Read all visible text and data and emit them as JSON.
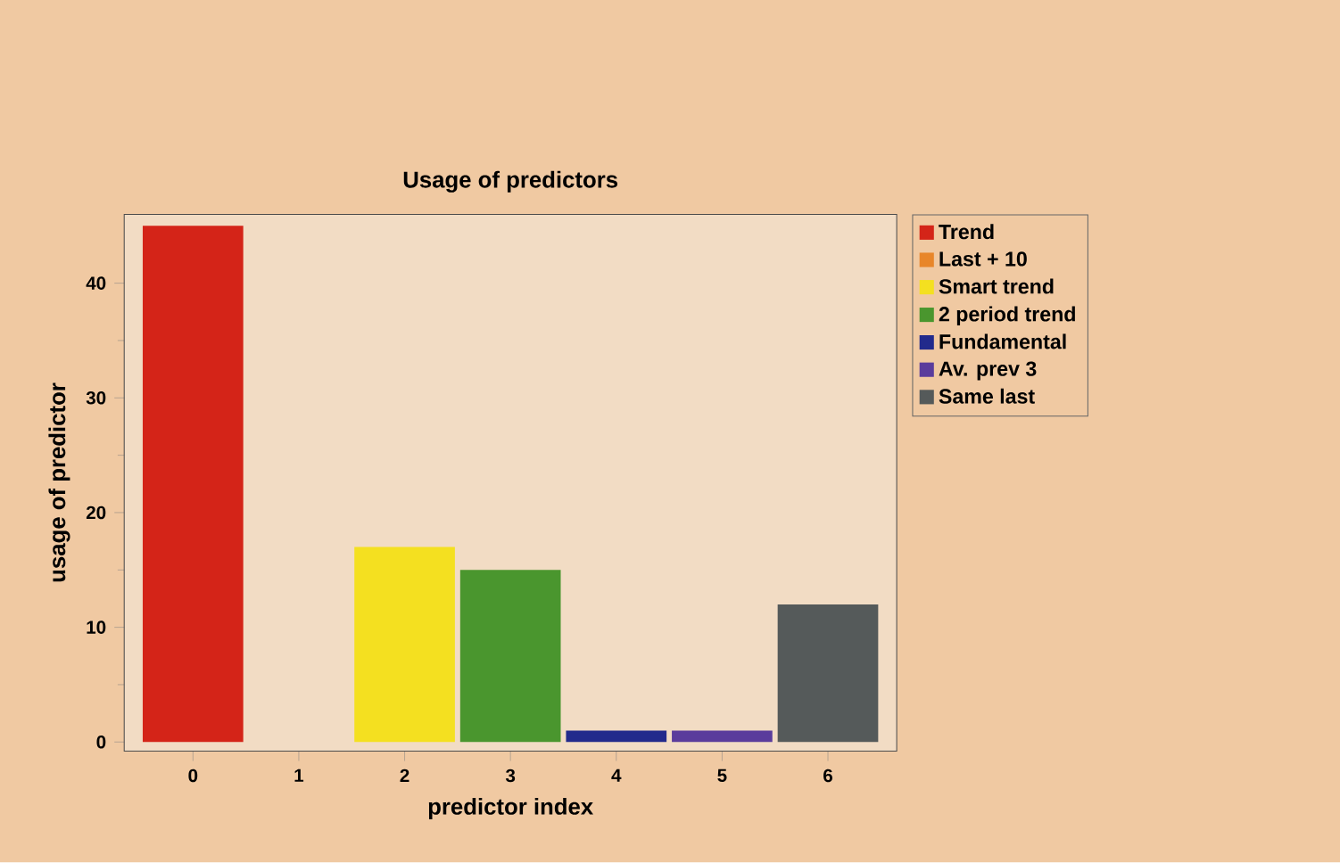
{
  "chart_data": {
    "type": "bar",
    "title": "Usage of predictors",
    "xlabel": "predictor index",
    "ylabel": "usage of predictor",
    "categories": [
      "0",
      "1",
      "2",
      "3",
      "4",
      "5",
      "6"
    ],
    "series": [
      {
        "name": "Trend",
        "color": "#d42418",
        "values": [
          45,
          null,
          null,
          null,
          null,
          null,
          null
        ]
      },
      {
        "name": "Last + 10",
        "color": "#e8862a",
        "values": [
          null,
          0,
          null,
          null,
          null,
          null,
          null
        ]
      },
      {
        "name": "Smart trend",
        "color": "#f4e020",
        "values": [
          null,
          null,
          17,
          null,
          null,
          null,
          null
        ]
      },
      {
        "name": "2 period trend",
        "color": "#4a962e",
        "values": [
          null,
          null,
          null,
          15,
          null,
          null,
          null
        ]
      },
      {
        "name": "Fundamental",
        "color": "#222a8c",
        "values": [
          null,
          null,
          null,
          null,
          1,
          null,
          null
        ]
      },
      {
        "name": "Av. prev 3",
        "color": "#5a3c9c",
        "values": [
          null,
          null,
          null,
          null,
          null,
          1,
          null
        ]
      },
      {
        "name": "Same last",
        "color": "#555a5a",
        "values": [
          null,
          null,
          null,
          null,
          null,
          null,
          12
        ]
      }
    ],
    "ylim": [
      -0.8,
      46
    ],
    "yticks": [
      0,
      10,
      20,
      30,
      40
    ],
    "legend": "right",
    "grid": false
  }
}
